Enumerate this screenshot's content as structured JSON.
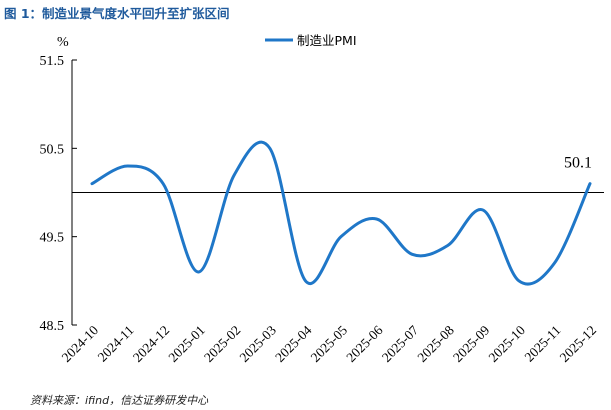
{
  "figure": {
    "title": "图 1：制造业景气度水平回升至扩张区间",
    "source": "资料来源：ifind，信达证券研发中心"
  },
  "chart_data": {
    "type": "line",
    "title": "",
    "xlabel": "",
    "ylabel": "%",
    "categories": [
      "2024-10",
      "2024-11",
      "2024-12",
      "2025-01",
      "2025-02",
      "2025-03",
      "2025-04",
      "2025-05",
      "2025-06",
      "2025-07",
      "2025-08",
      "2025-09",
      "2025-10",
      "2025-11",
      "2025-12"
    ],
    "series": [
      {
        "name": "制造业PMI",
        "color": "#1f77c8",
        "values": [
          50.1,
          50.3,
          50.1,
          49.1,
          50.2,
          50.5,
          49.0,
          49.5,
          49.7,
          49.3,
          49.4,
          49.8,
          49.0,
          49.2,
          50.1
        ]
      }
    ],
    "ylim": [
      48.5,
      51.5
    ],
    "yticks": [
      "48.5",
      "49.5",
      "50.5",
      "51.5"
    ],
    "reference_line": 50,
    "legend_position": "top-center",
    "grid": false,
    "annotations": [
      {
        "category": "2025-12",
        "text": "50.1"
      }
    ]
  }
}
